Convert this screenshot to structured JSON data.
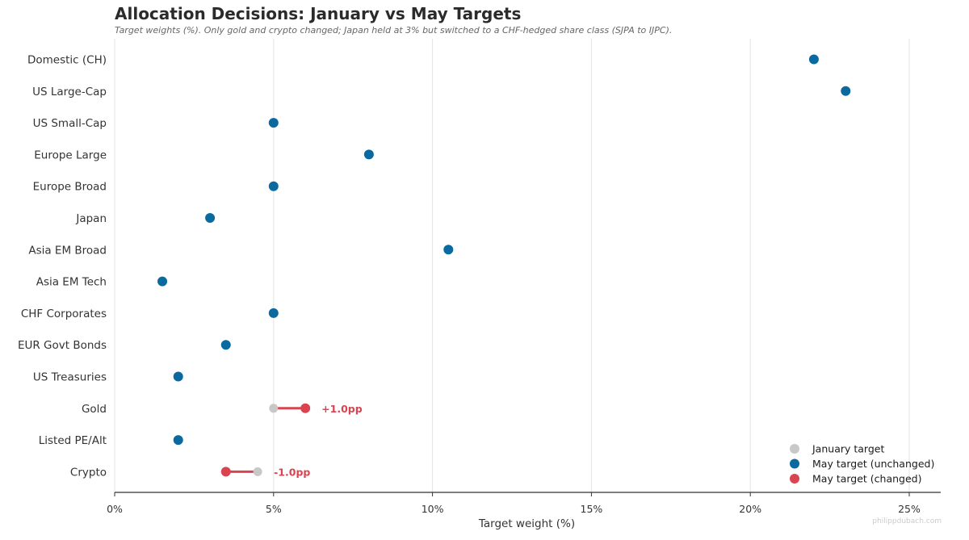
{
  "chart_data": {
    "type": "dumbbell",
    "title": "Allocation Decisions: January vs May Targets",
    "subtitle": "Target weights (%). Only gold and crypto changed; Japan held at 3% but switched to a CHF-hedged share class (SJPA to IJPC).",
    "xlabel": "Target weight (%)",
    "xlim": [
      0,
      26
    ],
    "xticks": [
      0,
      5,
      10,
      15,
      20,
      25
    ],
    "xtick_labels": [
      "0%",
      "5%",
      "10%",
      "15%",
      "20%",
      "25%"
    ],
    "grid": "vertical",
    "legend_position": "bottom-right",
    "legend": [
      {
        "key": "january",
        "label": "January target",
        "color": "#c8c8c8"
      },
      {
        "key": "unchanged",
        "label": "May target (unchanged)",
        "color": "#0a6aa0"
      },
      {
        "key": "changed",
        "label": "May target (changed)",
        "color": "#d94450"
      }
    ],
    "categories": [
      "Domestic (CH)",
      "US Large-Cap",
      "US Small-Cap",
      "Europe Large",
      "Europe Broad",
      "Japan",
      "Asia EM Broad",
      "Asia EM Tech",
      "CHF Corporates",
      "EUR Govt Bonds",
      "US Treasuries",
      "Gold",
      "Listed PE/Alt",
      "Crypto"
    ],
    "series": [
      {
        "name": "January target",
        "values": [
          22,
          23,
          5,
          8,
          5,
          3,
          10.5,
          1.5,
          5,
          3.5,
          2,
          5,
          2,
          4.5
        ]
      },
      {
        "name": "May target",
        "values": [
          22,
          23,
          5,
          8,
          5,
          3,
          10.5,
          1.5,
          5,
          3.5,
          2,
          6,
          2,
          3.5
        ]
      }
    ],
    "annotations": [
      {
        "category": "Gold",
        "text": "+1.0pp"
      },
      {
        "category": "Crypto",
        "text": "-1.0pp"
      }
    ]
  },
  "watermark": "philippdubach.com"
}
